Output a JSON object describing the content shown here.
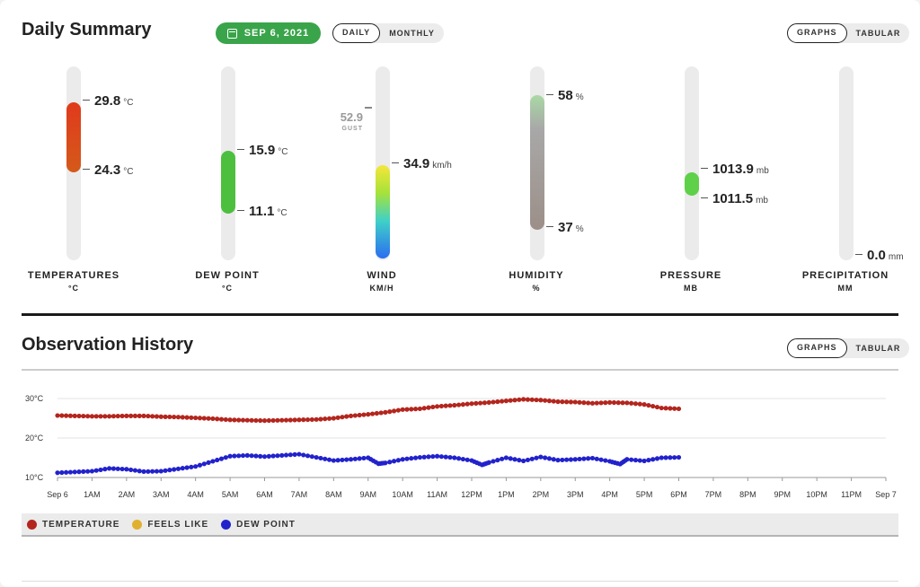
{
  "daily_summary": {
    "title": "Daily Summary",
    "date_button": "SEP 6, 2021",
    "period_toggle": [
      "DAILY",
      "MONTHLY"
    ],
    "period_active": "DAILY",
    "view_toggle": [
      "GRAPHS",
      "TABULAR"
    ],
    "view_active": "GRAPHS"
  },
  "gauges": {
    "temperature": {
      "label": "TEMPERATURES",
      "unit_label": "°C",
      "high": "29.8",
      "low": "24.3",
      "unit": "°C",
      "color_top": "#e0401e",
      "color_bottom": "#d0501a"
    },
    "dew_point": {
      "label": "DEW POINT",
      "unit_label": "°C",
      "high": "15.9",
      "low": "11.1",
      "unit": "°C",
      "color": "#4cbf3f"
    },
    "wind": {
      "label": "WIND",
      "unit_label": "KM/H",
      "value": "34.9",
      "unit": "km/h",
      "gust": "52.9",
      "gust_label": "GUST"
    },
    "humidity": {
      "label": "HUMIDITY",
      "unit_label": "%",
      "high": "58",
      "low": "37",
      "unit": "%"
    },
    "pressure": {
      "label": "PRESSURE",
      "unit_label": "MB",
      "high": "1013.9",
      "low": "1011.5",
      "unit": "mb",
      "color": "#5fd04a"
    },
    "precipitation": {
      "label": "PRECIPITATION",
      "unit_label": "MM",
      "value": "0.0",
      "unit": "mm"
    }
  },
  "observation_history": {
    "title": "Observation History",
    "view_toggle": [
      "GRAPHS",
      "TABULAR"
    ],
    "view_active": "GRAPHS",
    "legend": [
      {
        "label": "TEMPERATURE",
        "color": "#b3261e"
      },
      {
        "label": "FEELS LIKE",
        "color": "#e0b030"
      },
      {
        "label": "DEW POINT",
        "color": "#2222cc"
      }
    ]
  },
  "chart_data": {
    "type": "line",
    "y_ticks": [
      "30°C",
      "20°C",
      "10°C"
    ],
    "y_tick_values": [
      30,
      20,
      10
    ],
    "ylim": [
      10,
      30
    ],
    "x_ticks": [
      "Sep 6",
      "1AM",
      "2AM",
      "3AM",
      "4AM",
      "5AM",
      "6AM",
      "7AM",
      "8AM",
      "9AM",
      "10AM",
      "11AM",
      "12PM",
      "1PM",
      "2PM",
      "3PM",
      "4PM",
      "5PM",
      "6PM",
      "7PM",
      "8PM",
      "9PM",
      "10PM",
      "11PM",
      "Sep 7"
    ],
    "x_range_hours": [
      0,
      24
    ],
    "grid": true,
    "series": [
      {
        "name": "TEMPERATURE",
        "color": "#b3261e",
        "x_hours": [
          0,
          0.5,
          1,
          1.5,
          2,
          2.5,
          3,
          3.5,
          4,
          4.5,
          5,
          5.5,
          6,
          6.5,
          7,
          7.5,
          8,
          8.5,
          9,
          9.5,
          10,
          10.5,
          11,
          11.5,
          12,
          12.5,
          13,
          13.5,
          14,
          14.5,
          15,
          15.5,
          16,
          16.5,
          17,
          17.5,
          18
        ],
        "values": [
          25.7,
          25.6,
          25.5,
          25.5,
          25.6,
          25.6,
          25.4,
          25.3,
          25.1,
          24.9,
          24.6,
          24.5,
          24.4,
          24.5,
          24.6,
          24.7,
          25.0,
          25.6,
          26.0,
          26.5,
          27.2,
          27.4,
          28.0,
          28.3,
          28.7,
          29.0,
          29.4,
          29.8,
          29.6,
          29.2,
          29.1,
          28.8,
          29.0,
          28.9,
          28.5,
          27.6,
          27.4
        ]
      },
      {
        "name": "FEELS LIKE",
        "color": "#e0b030",
        "x_hours": [],
        "values": []
      },
      {
        "name": "DEW POINT",
        "color": "#2222cc",
        "x_hours": [
          0,
          0.5,
          1,
          1.5,
          2,
          2.5,
          3,
          3.5,
          4,
          4.5,
          5,
          5.5,
          6,
          6.5,
          7,
          7.5,
          8,
          8.5,
          9,
          9.3,
          9.5,
          10,
          10.5,
          11,
          11.5,
          12,
          12.3,
          12.5,
          13,
          13.5,
          14,
          14.5,
          15,
          15.5,
          16,
          16.3,
          16.5,
          17,
          17.5,
          18
        ],
        "values": [
          11.2,
          11.4,
          11.6,
          12.3,
          12.1,
          11.5,
          11.6,
          12.2,
          12.8,
          14.1,
          15.4,
          15.6,
          15.3,
          15.6,
          15.9,
          15.1,
          14.3,
          14.6,
          15.0,
          13.5,
          13.7,
          14.6,
          15.1,
          15.4,
          15.0,
          14.3,
          13.2,
          13.8,
          15.0,
          14.2,
          15.2,
          14.4,
          14.6,
          14.9,
          14.1,
          13.4,
          14.6,
          14.2,
          15.0,
          15.1
        ]
      }
    ]
  }
}
